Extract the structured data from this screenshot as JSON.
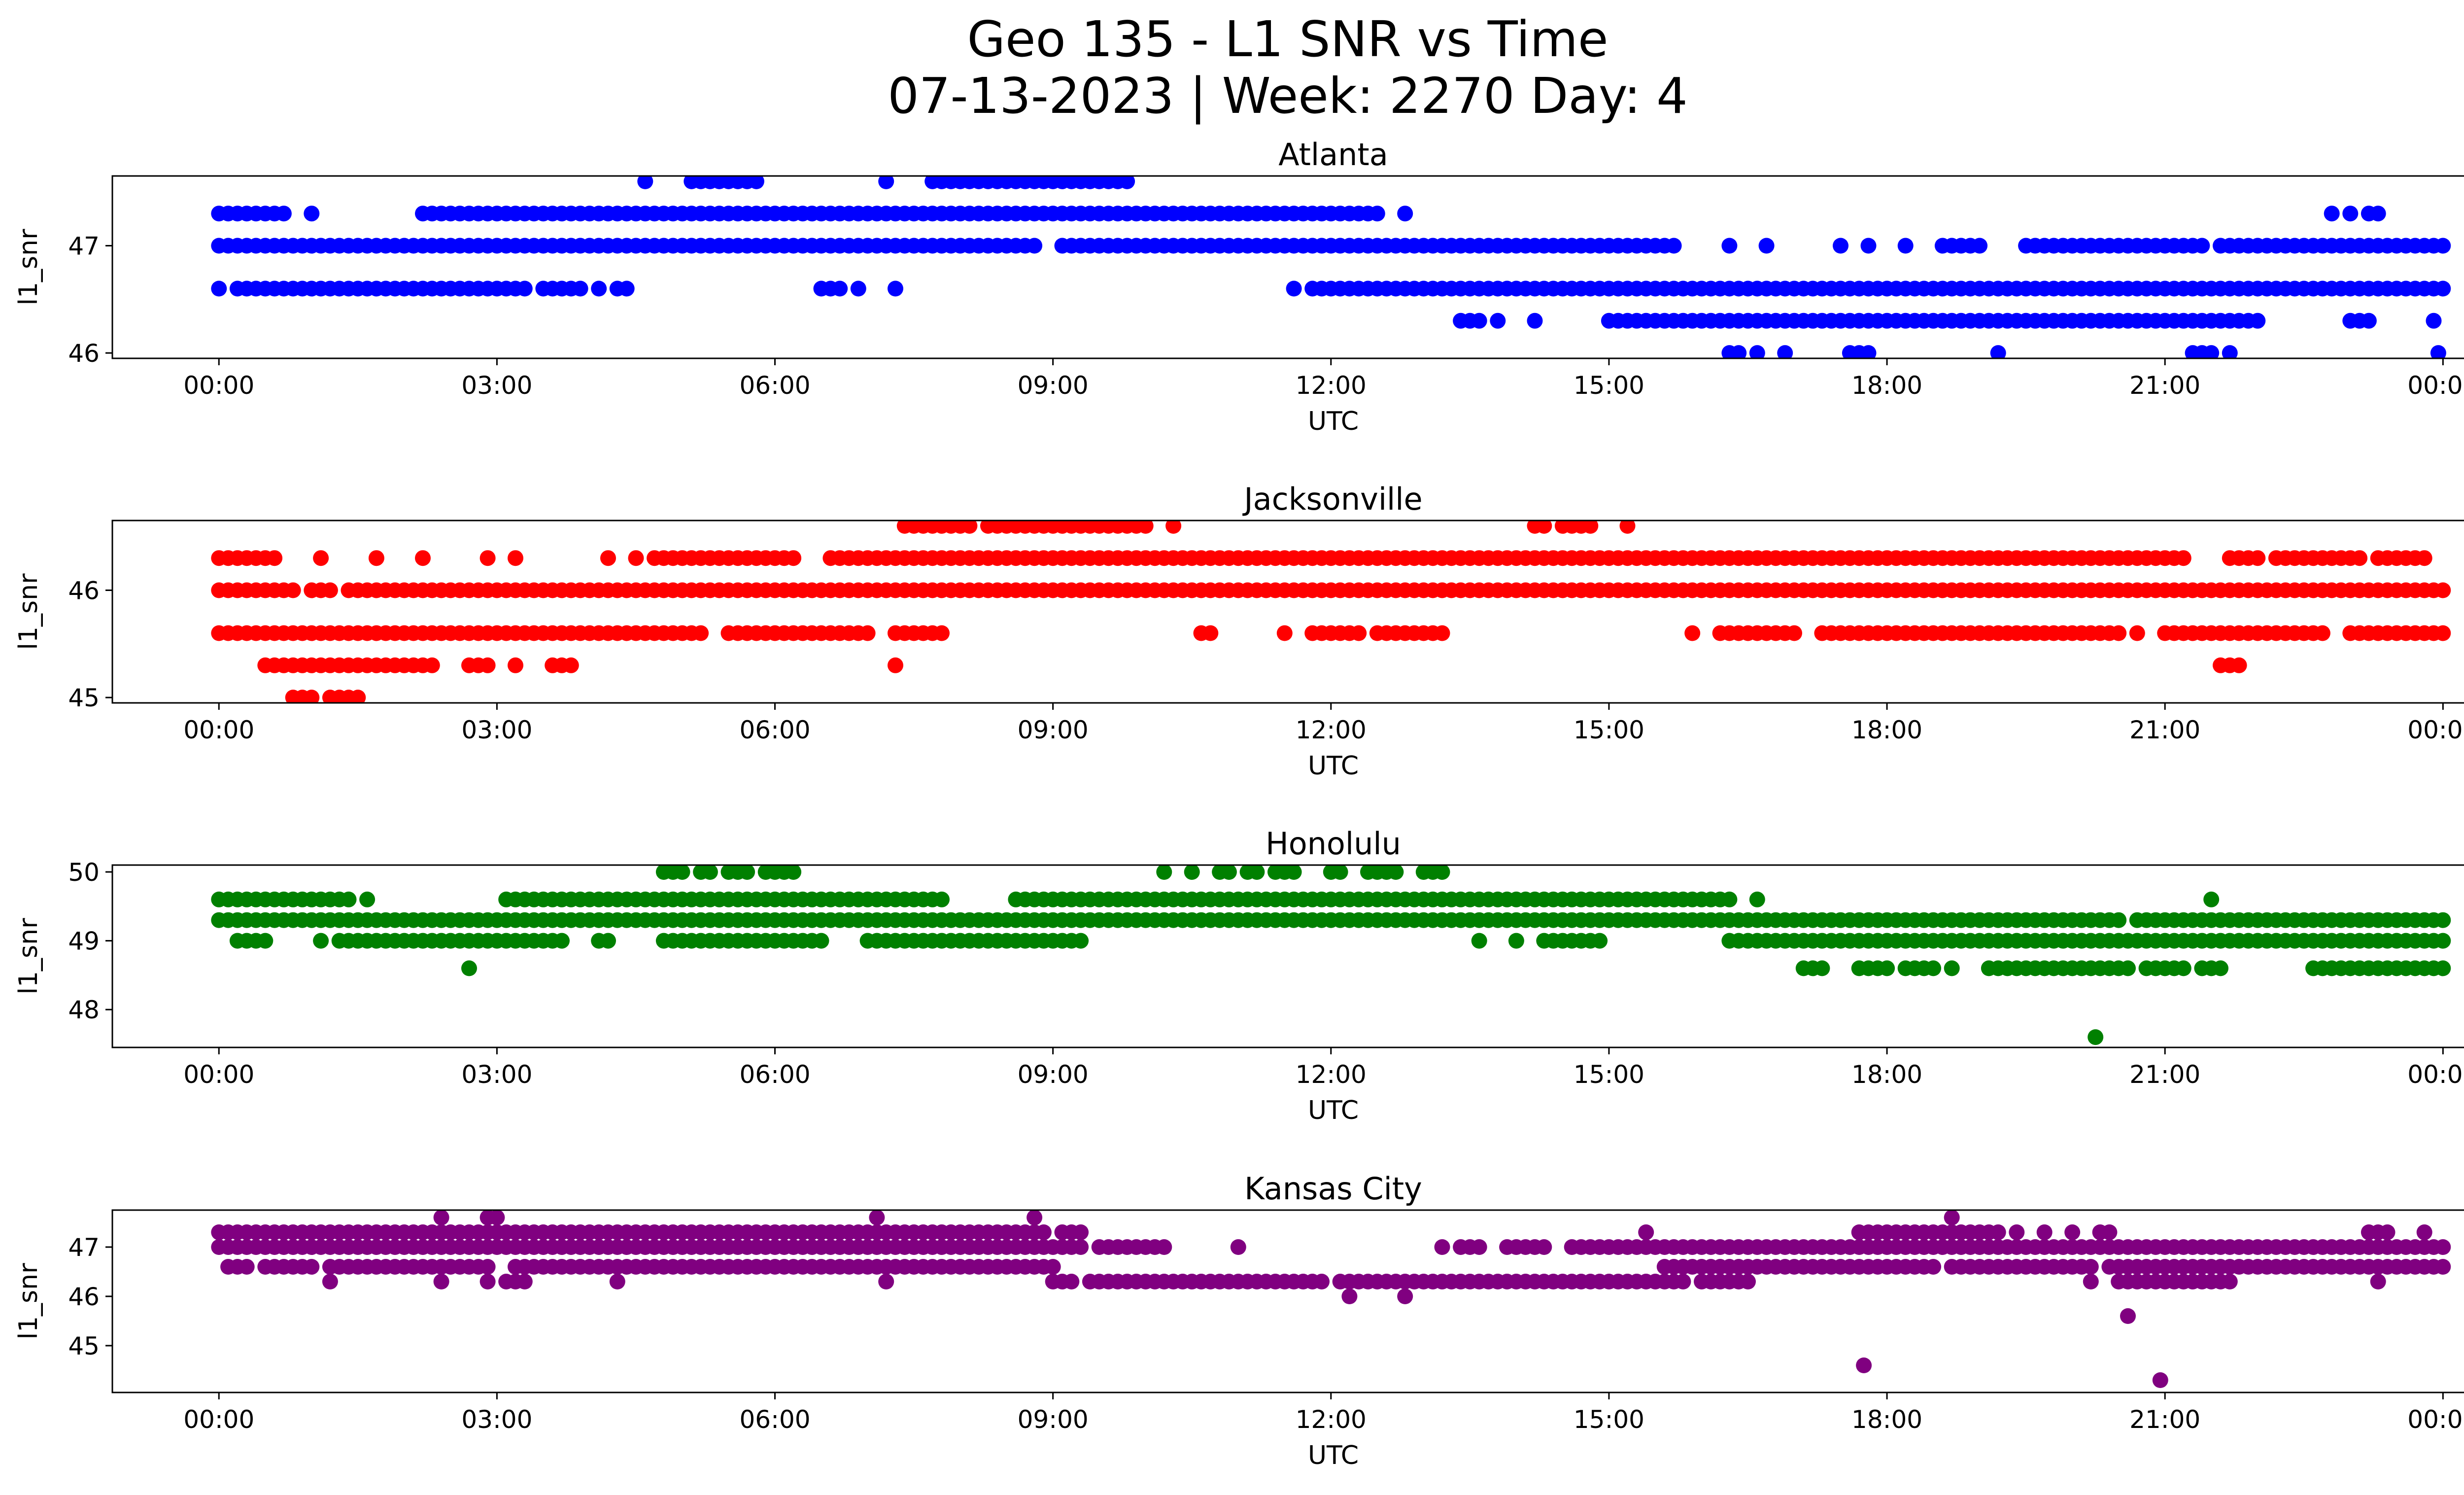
{
  "figure": {
    "title_line1": "Geo 135 - L1 SNR vs Time",
    "title_line2": "07-13-2023 | Week: 2270 Day: 4"
  },
  "chart_data": [
    {
      "type": "scatter",
      "title": "Atlanta",
      "xlabel": "UTC",
      "ylabel": "l1_snr",
      "color": "#0000ff",
      "x_ticks": [
        "00:00",
        "03:00",
        "06:00",
        "09:00",
        "12:00",
        "15:00",
        "18:00",
        "21:00",
        "00:00"
      ],
      "xlim_hours": [
        -1.15,
        25.2
      ],
      "ylim": [
        45.95,
        47.65
      ],
      "y_ticks": [
        46,
        47
      ],
      "series": [
        {
          "y": 47.6,
          "segments": [
            [
              4.6,
              4.65
            ],
            [
              5.1,
              5.8
            ],
            [
              7.2,
              7.25
            ],
            [
              7.7,
              9.8
            ]
          ]
        },
        {
          "y": 47.3,
          "segments": [
            [
              0,
              0.7
            ],
            [
              1,
              1.05
            ],
            [
              2.2,
              12.5
            ],
            [
              12.8,
              12.85
            ],
            [
              22.8,
              22.85
            ],
            [
              23.0,
              23.05
            ],
            [
              23.2,
              23.35
            ]
          ]
        },
        {
          "y": 47.0,
          "segments": [
            [
              0,
              8.3
            ],
            [
              8.4,
              8.8
            ],
            [
              9.1,
              15.5
            ],
            [
              15.6,
              15.7
            ],
            [
              16.3,
              16.35
            ],
            [
              16.7,
              16.75
            ],
            [
              17.5,
              17.55
            ],
            [
              17.8,
              17.85
            ],
            [
              18.2,
              18.25
            ],
            [
              18.6,
              18.9
            ],
            [
              19.0,
              19.05
            ],
            [
              19.5,
              21.3
            ],
            [
              21.4,
              21.45
            ],
            [
              21.6,
              24
            ]
          ]
        },
        {
          "y": 46.6,
          "segments": [
            [
              0,
              0.05
            ],
            [
              0.2,
              3.3
            ],
            [
              3.5,
              3.9
            ],
            [
              4.1,
              4.15
            ],
            [
              4.3,
              4.4
            ],
            [
              6.5,
              6.7
            ],
            [
              6.9,
              6.95
            ],
            [
              7.3,
              7.35
            ],
            [
              11.6,
              11.65
            ],
            [
              11.8,
              12.0
            ],
            [
              12.1,
              24
            ]
          ]
        },
        {
          "y": 46.3,
          "segments": [
            [
              13.4,
              13.6
            ],
            [
              13.8,
              13.85
            ],
            [
              14.2,
              14.25
            ],
            [
              15.0,
              22.0
            ],
            [
              23.0,
              23.2
            ],
            [
              23.9,
              23.95
            ]
          ]
        },
        {
          "y": 46.0,
          "segments": [
            [
              16.3,
              16.4
            ],
            [
              16.6,
              16.65
            ],
            [
              16.9,
              16.95
            ],
            [
              17.6,
              17.7
            ],
            [
              17.8,
              17.85
            ],
            [
              19.2,
              19.25
            ],
            [
              21.3,
              21.5
            ],
            [
              21.7,
              21.75
            ],
            [
              23.95,
              24
            ]
          ]
        }
      ]
    },
    {
      "type": "scatter",
      "title": "Jacksonville",
      "xlabel": "UTC",
      "ylabel": "l1_snr",
      "color": "#ff0000",
      "x_ticks": [
        "00:00",
        "03:00",
        "06:00",
        "09:00",
        "12:00",
        "15:00",
        "18:00",
        "21:00",
        "00:00"
      ],
      "xlim_hours": [
        -1.15,
        25.2
      ],
      "ylim": [
        44.95,
        46.65
      ],
      "y_ticks": [
        45,
        46
      ],
      "series": [
        {
          "y": 46.6,
          "segments": [
            [
              7.4,
              8.1
            ],
            [
              8.3,
              10.0
            ],
            [
              10.3,
              10.35
            ],
            [
              14.2,
              14.3
            ],
            [
              14.5,
              14.8
            ],
            [
              15.2,
              15.25
            ]
          ]
        },
        {
          "y": 46.3,
          "segments": [
            [
              0,
              0.3
            ],
            [
              0.4,
              0.6
            ],
            [
              1.1,
              1.15
            ],
            [
              1.7,
              1.75
            ],
            [
              2.2,
              2.25
            ],
            [
              2.9,
              2.95
            ],
            [
              3.2,
              3.25
            ],
            [
              4.2,
              4.25
            ],
            [
              4.5,
              4.55
            ],
            [
              4.7,
              6.2
            ],
            [
              6.6,
              6.9
            ],
            [
              7.0,
              21.2
            ],
            [
              21.7,
              22.0
            ],
            [
              22.2,
              23.1
            ],
            [
              23.3,
              23.8
            ]
          ]
        },
        {
          "y": 46.0,
          "segments": [
            [
              0,
              0.8
            ],
            [
              1.0,
              1.2
            ],
            [
              1.4,
              24
            ]
          ]
        },
        {
          "y": 45.6,
          "segments": [
            [
              0,
              5.2
            ],
            [
              5.5,
              7.0
            ],
            [
              7.3,
              7.8
            ],
            [
              10.6,
              10.7
            ],
            [
              11.5,
              11.55
            ],
            [
              11.8,
              12.3
            ],
            [
              12.5,
              13.2
            ],
            [
              15.9,
              15.95
            ],
            [
              16.2,
              17.0
            ],
            [
              17.3,
              18.6
            ],
            [
              18.7,
              20.5
            ],
            [
              20.7,
              20.75
            ],
            [
              21.0,
              22.7
            ],
            [
              23.0,
              24
            ]
          ]
        },
        {
          "y": 45.3,
          "segments": [
            [
              0.5,
              1.6
            ],
            [
              1.7,
              2.3
            ],
            [
              2.7,
              2.9
            ],
            [
              3.2,
              3.25
            ],
            [
              3.6,
              3.8
            ],
            [
              7.3,
              7.35
            ],
            [
              21.6,
              21.8
            ]
          ]
        },
        {
          "y": 45.0,
          "segments": [
            [
              0.8,
              1.0
            ],
            [
              1.2,
              1.5
            ]
          ]
        }
      ]
    },
    {
      "type": "scatter",
      "title": "Honolulu",
      "xlabel": "UTC",
      "ylabel": "l1_snr",
      "color": "#008000",
      "x_ticks": [
        "00:00",
        "03:00",
        "06:00",
        "09:00",
        "12:00",
        "15:00",
        "18:00",
        "21:00",
        "00:00"
      ],
      "xlim_hours": [
        -1.15,
        25.2
      ],
      "ylim": [
        47.45,
        50.1
      ],
      "y_ticks": [
        48,
        49,
        50
      ],
      "series": [
        {
          "y": 50.0,
          "segments": [
            [
              4.8,
              5.0
            ],
            [
              5.2,
              5.3
            ],
            [
              5.5,
              5.7
            ],
            [
              5.9,
              6.2
            ],
            [
              10.2,
              10.25
            ],
            [
              10.5,
              10.55
            ],
            [
              10.8,
              10.9
            ],
            [
              11.1,
              11.2
            ],
            [
              11.4,
              11.6
            ],
            [
              12.0,
              12.15
            ],
            [
              12.4,
              12.7
            ],
            [
              13.0,
              13.25
            ]
          ]
        },
        {
          "y": 49.6,
          "segments": [
            [
              0,
              1.4
            ],
            [
              1.6,
              1.65
            ],
            [
              3.1,
              7.8
            ],
            [
              8.6,
              16.3
            ],
            [
              16.6,
              16.65
            ],
            [
              21.5,
              21.55
            ]
          ]
        },
        {
          "y": 49.3,
          "segments": [
            [
              0,
              20.4
            ],
            [
              20.5,
              20.55
            ],
            [
              20.7,
              23.5
            ],
            [
              23.6,
              24
            ]
          ]
        },
        {
          "y": 49.0,
          "segments": [
            [
              0.2,
              0.4
            ],
            [
              0.5,
              0.55
            ],
            [
              1.1,
              1.15
            ],
            [
              1.3,
              3.4
            ],
            [
              3.5,
              3.7
            ],
            [
              4.1,
              4.2
            ],
            [
              4.8,
              6.5
            ],
            [
              7.0,
              9.3
            ],
            [
              13.6,
              13.65
            ],
            [
              14.0,
              14.05
            ],
            [
              14.3,
              14.9
            ],
            [
              16.3,
              24
            ]
          ]
        },
        {
          "y": 48.6,
          "segments": [
            [
              2.7,
              2.75
            ],
            [
              17.1,
              17.3
            ],
            [
              17.7,
              18.0
            ],
            [
              18.2,
              18.5
            ],
            [
              18.7,
              18.75
            ],
            [
              19.1,
              20.6
            ],
            [
              20.8,
              21.2
            ],
            [
              21.4,
              21.6
            ],
            [
              22.6,
              24
            ]
          ]
        },
        {
          "y": 47.6,
          "segments": [
            [
              20.25,
              20.3
            ]
          ]
        }
      ]
    },
    {
      "type": "scatter",
      "title": "Kansas City",
      "xlabel": "UTC",
      "ylabel": "l1_snr",
      "color": "#800080",
      "x_ticks": [
        "00:00",
        "03:00",
        "06:00",
        "09:00",
        "12:00",
        "15:00",
        "18:00",
        "21:00",
        "00:00"
      ],
      "xlim_hours": [
        -1.15,
        25.2
      ],
      "ylim": [
        44.05,
        47.75
      ],
      "y_ticks": [
        45,
        46,
        47
      ],
      "series": [
        {
          "y": 47.6,
          "segments": [
            [
              2.4,
              2.45
            ],
            [
              2.9,
              3.05
            ],
            [
              7.1,
              7.15
            ],
            [
              8.8,
              8.85
            ],
            [
              18.7,
              18.75
            ]
          ]
        },
        {
          "y": 47.3,
          "segments": [
            [
              0,
              8.9
            ],
            [
              9.1,
              9.3
            ],
            [
              15.4,
              15.45
            ],
            [
              17.7,
              19.2
            ],
            [
              19.4,
              19.45
            ],
            [
              19.7,
              19.75
            ],
            [
              20.0,
              20.05
            ],
            [
              20.3,
              20.45
            ],
            [
              23.2,
              23.4
            ],
            [
              23.8,
              23.85
            ]
          ]
        },
        {
          "y": 47.0,
          "segments": [
            [
              0,
              9.3
            ],
            [
              9.5,
              10.2
            ],
            [
              11.0,
              11.05
            ],
            [
              13.2,
              13.25
            ],
            [
              13.4,
              13.6
            ],
            [
              13.9,
              14.2
            ],
            [
              14.3,
              14.35
            ],
            [
              14.6,
              24
            ]
          ]
        },
        {
          "y": 46.6,
          "segments": [
            [
              0.1,
              0.3
            ],
            [
              0.5,
              0.7
            ],
            [
              0.8,
              1.0
            ],
            [
              1.2,
              2.2
            ],
            [
              2.3,
              2.5
            ],
            [
              2.6,
              2.9
            ],
            [
              3.2,
              9.0
            ],
            [
              15.6,
              16.0
            ],
            [
              16.1,
              16.3
            ],
            [
              16.4,
              18.5
            ],
            [
              18.7,
              20.2
            ],
            [
              20.4,
              24
            ]
          ]
        },
        {
          "y": 46.3,
          "segments": [
            [
              1.2,
              1.25
            ],
            [
              2.4,
              2.45
            ],
            [
              2.9,
              2.95
            ],
            [
              3.1,
              3.3
            ],
            [
              4.3,
              4.35
            ],
            [
              7.2,
              7.25
            ],
            [
              9.0,
              9.2
            ],
            [
              9.4,
              11.9
            ],
            [
              12.1,
              15.8
            ],
            [
              16.0,
              16.5
            ],
            [
              20.2,
              20.25
            ],
            [
              20.5,
              20.8
            ],
            [
              20.9,
              21.7
            ],
            [
              23.3,
              23.35
            ]
          ]
        },
        {
          "y": 46.0,
          "segments": [
            [
              12.2,
              12.25
            ],
            [
              12.8,
              12.85
            ]
          ]
        },
        {
          "y": 45.6,
          "segments": [
            [
              20.6,
              20.65
            ]
          ]
        },
        {
          "y": 44.6,
          "segments": [
            [
              17.75,
              17.8
            ]
          ]
        },
        {
          "y": 44.3,
          "segments": [
            [
              20.95,
              21.0
            ]
          ]
        }
      ]
    }
  ]
}
